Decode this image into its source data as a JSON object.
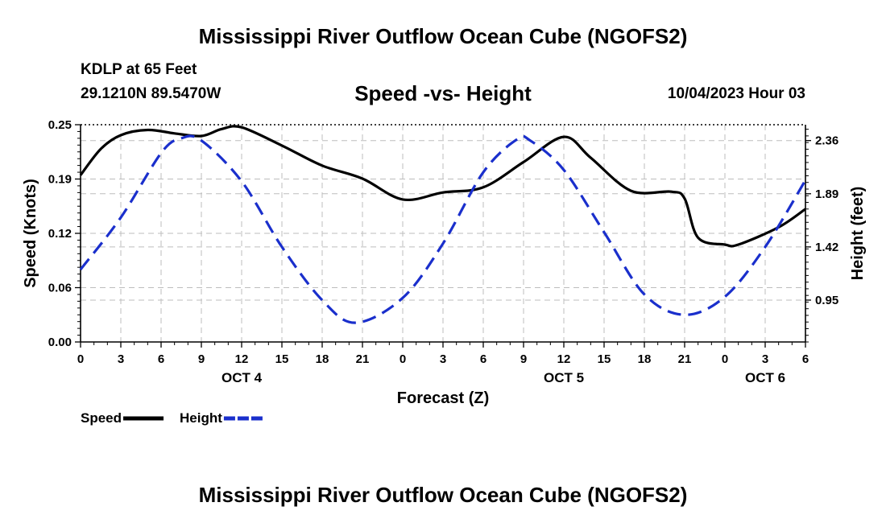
{
  "title": "Mississippi River Outflow Ocean Cube (NGOFS2)",
  "footer_title": "Mississippi River Outflow Ocean Cube (NGOFS2)",
  "station": "KDLP at 65 Feet",
  "coords": "29.1210N  89.5470W",
  "datetime": "10/04/2023 Hour 03",
  "chart_data": {
    "type": "line",
    "title": "Speed -vs- Height",
    "xlabel": "Forecast (Z)",
    "ylabel": "Speed (Knots)",
    "y2label": "Height (feet)",
    "x_ticks": [
      "0",
      "3",
      "6",
      "9",
      "12",
      "15",
      "18",
      "21",
      "0",
      "3",
      "6",
      "9",
      "12",
      "15",
      "18",
      "21",
      "0",
      "3",
      "6"
    ],
    "day_labels": [
      {
        "label": "OCT 4",
        "x_hour": 12
      },
      {
        "label": "OCT 5",
        "x_hour": 36
      },
      {
        "label": "OCT 6",
        "x_hour": 51
      }
    ],
    "xlim": [
      0,
      54
    ],
    "ylim": [
      0,
      0.25
    ],
    "y_ticks": [
      "0.00",
      "0.06",
      "0.12",
      "0.19",
      "0.25"
    ],
    "y2lim": [
      0.58,
      2.5
    ],
    "y2_ticks": [
      {
        "label": "0.95",
        "value": 0.95
      },
      {
        "label": "1.42",
        "value": 1.42
      },
      {
        "label": "1.89",
        "value": 1.89
      },
      {
        "label": "2.36",
        "value": 2.36
      }
    ],
    "series": [
      {
        "name": "Speed",
        "axis": "left",
        "color": "#000000",
        "dash": "none",
        "x": [
          0,
          1.5,
          3,
          5,
          7,
          9,
          10.5,
          12,
          15,
          18,
          21,
          24,
          27,
          30,
          33,
          36,
          38,
          41,
          44,
          45,
          46,
          48,
          49,
          52,
          54
        ],
        "y": [
          0.192,
          0.222,
          0.238,
          0.244,
          0.24,
          0.237,
          0.245,
          0.247,
          0.226,
          0.203,
          0.188,
          0.164,
          0.172,
          0.178,
          0.207,
          0.236,
          0.212,
          0.174,
          0.173,
          0.165,
          0.12,
          0.112,
          0.112,
          0.132,
          0.153
        ]
      },
      {
        "name": "Height",
        "axis": "right",
        "color": "#1a2fcc",
        "dash": "dashed",
        "x": [
          0,
          3,
          6,
          7.5,
          9,
          12,
          15,
          18,
          20.5,
          24,
          27,
          30,
          32.5,
          33.5,
          36,
          39,
          42,
          45,
          48,
          51,
          54
        ],
        "y": [
          1.22,
          1.68,
          2.25,
          2.38,
          2.36,
          2.0,
          1.42,
          0.95,
          0.75,
          0.97,
          1.45,
          2.08,
          2.37,
          2.36,
          2.1,
          1.55,
          1.0,
          0.82,
          0.98,
          1.42,
          2.01
        ]
      }
    ],
    "legend": [
      {
        "label": "Speed",
        "color": "#000000"
      },
      {
        "label": "Height",
        "color": "#1a2fcc"
      }
    ],
    "legend_position": "bottom-left"
  }
}
